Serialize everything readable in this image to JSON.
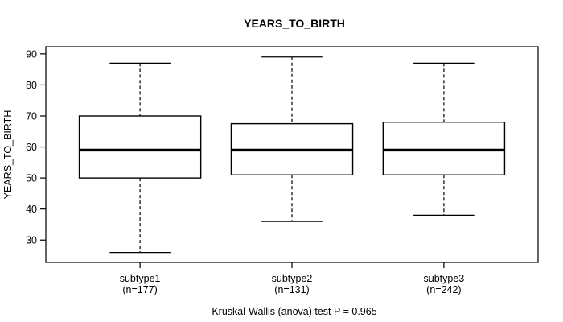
{
  "chart_data": {
    "type": "boxplot",
    "title": "YEARS_TO_BIRTH",
    "ylabel": "YEARS_TO_BIRTH",
    "xlabel": "",
    "annotation": "Kruskal-Wallis (anova) test P = 0.965",
    "y_ticks": [
      90,
      80,
      70,
      60,
      50,
      40,
      30
    ],
    "y_domain": [
      22.8,
      92.3
    ],
    "x_domain": [
      0.38,
      3.62
    ],
    "box_width": 0.8,
    "cap_width": 0.4,
    "grid": false,
    "groups": [
      {
        "label": "subtype1",
        "count_label": "(n=177)",
        "n": 177,
        "whisker_low": 26,
        "q1": 50,
        "median": 59,
        "q3": 70,
        "whisker_high": 87,
        "outliers": []
      },
      {
        "label": "subtype2",
        "count_label": "(n=131)",
        "n": 131,
        "whisker_low": 36,
        "q1": 51,
        "median": 59,
        "q3": 67.5,
        "whisker_high": 89,
        "outliers": []
      },
      {
        "label": "subtype3",
        "count_label": "(n=242)",
        "n": 242,
        "whisker_low": 38,
        "q1": 51,
        "median": 59,
        "q3": 68,
        "whisker_high": 87,
        "outliers": []
      }
    ],
    "colors": {
      "background": "#ffffff",
      "box_fill": "#ffffff",
      "stroke": "#000000",
      "frame": "#3d3d3d",
      "text": "#000000"
    }
  }
}
